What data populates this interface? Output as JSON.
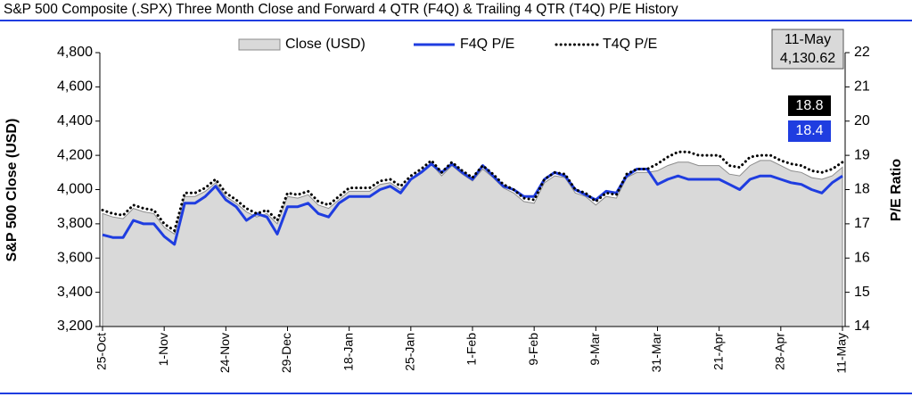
{
  "chart_data": {
    "type": "line",
    "title": "S&P 500 Composite (.SPX) Three Month Close and Forward 4 QTR (F4Q) & Trailing 4 QTR (T4Q) P/E History",
    "ylabel": "S&P 500 Close (USD)",
    "y2label": "P/E Ratio",
    "categories": [
      "25-Oct",
      null,
      null,
      null,
      null,
      null,
      "1-Nov",
      null,
      null,
      null,
      null,
      null,
      "24-Nov",
      null,
      null,
      null,
      null,
      null,
      "29-Dec",
      null,
      null,
      null,
      null,
      null,
      "18-Jan",
      null,
      null,
      null,
      null,
      null,
      "25-Jan",
      null,
      null,
      null,
      null,
      null,
      "1-Feb",
      null,
      null,
      null,
      null,
      null,
      "9-Feb",
      null,
      null,
      null,
      null,
      null,
      "9-Mar",
      null,
      null,
      null,
      null,
      null,
      "31-Mar",
      null,
      null,
      null,
      null,
      null,
      "21-Apr",
      null,
      null,
      null,
      null,
      null,
      "28-Apr",
      null,
      null,
      null,
      null,
      null,
      "11-May"
    ],
    "series": [
      {
        "name": "Close (USD)",
        "color": "#d9d9d9",
        "style": "area",
        "values": [
          3860,
          3840,
          3830,
          3890,
          3870,
          3860,
          3780,
          3740,
          3960,
          3960,
          3990,
          4040,
          3960,
          3920,
          3870,
          3840,
          3860,
          3800,
          3960,
          3950,
          3970,
          3910,
          3890,
          3940,
          3990,
          3990,
          3990,
          4030,
          4040,
          4000,
          4060,
          4100,
          4150,
          4080,
          4140,
          4090,
          4050,
          4120,
          4070,
          4010,
          3980,
          3930,
          3920,
          4040,
          4080,
          4070,
          3980,
          3960,
          3910,
          3960,
          3950,
          4070,
          4100,
          4100,
          4110,
          4140,
          4160,
          4160,
          4140,
          4140,
          4140,
          4090,
          4080,
          4140,
          4170,
          4170,
          4140,
          4110,
          4100,
          4070,
          4060,
          4080,
          4130.62
        ],
        "value_labels": [
          null,
          null,
          null,
          null,
          null,
          null,
          null,
          null,
          null,
          null,
          null,
          null,
          null,
          null,
          null,
          null,
          null,
          null,
          null,
          null,
          null,
          null,
          null,
          null,
          null,
          null,
          null,
          null,
          null,
          null,
          null,
          null,
          null,
          null,
          null,
          null,
          null,
          null,
          null,
          null,
          null,
          null,
          null,
          null,
          null,
          null,
          null,
          null,
          null,
          null,
          null,
          null,
          null,
          null,
          null,
          null,
          null,
          null,
          null,
          null,
          null,
          null,
          null,
          null,
          null,
          null,
          null,
          null,
          null,
          null,
          null,
          null,
          "4,130.62"
        ]
      },
      {
        "name": "F4Q P/E",
        "color": "#1f3de0",
        "style": "solid",
        "axis": "y2",
        "values": [
          16.68,
          16.6,
          16.6,
          17.1,
          17.0,
          17.0,
          16.63,
          16.4,
          17.6,
          17.6,
          17.8,
          18.1,
          17.7,
          17.5,
          17.1,
          17.3,
          17.2,
          16.7,
          17.5,
          17.5,
          17.6,
          17.3,
          17.2,
          17.6,
          17.8,
          17.8,
          17.8,
          18.0,
          18.1,
          17.9,
          18.3,
          18.5,
          18.75,
          18.5,
          18.75,
          18.5,
          18.3,
          18.7,
          18.4,
          18.1,
          18.0,
          17.8,
          17.8,
          18.3,
          18.5,
          18.4,
          18.0,
          17.85,
          17.7,
          17.95,
          17.9,
          18.4,
          18.6,
          18.6,
          18.15,
          18.3,
          18.4,
          18.3,
          18.3,
          18.3,
          18.3,
          18.15,
          18.0,
          18.3,
          18.4,
          18.4,
          18.3,
          18.2,
          18.15,
          18.0,
          17.9,
          18.2,
          18.4
        ]
      },
      {
        "name": "T4Q P/E",
        "color": "#000000",
        "style": "dotted",
        "axis": "y2",
        "values": [
          17.4,
          17.3,
          17.25,
          17.55,
          17.45,
          17.4,
          17.0,
          16.8,
          17.9,
          17.9,
          18.05,
          18.3,
          17.9,
          17.7,
          17.45,
          17.3,
          17.4,
          17.1,
          17.9,
          17.85,
          17.95,
          17.65,
          17.55,
          17.8,
          18.05,
          18.05,
          18.05,
          18.25,
          18.3,
          18.1,
          18.4,
          18.6,
          18.85,
          18.5,
          18.8,
          18.55,
          18.35,
          18.7,
          18.45,
          18.15,
          18.0,
          17.75,
          17.7,
          18.3,
          18.5,
          18.45,
          18.0,
          17.9,
          17.65,
          17.9,
          17.85,
          18.45,
          18.6,
          18.6,
          18.75,
          18.95,
          19.1,
          19.1,
          19.0,
          19.0,
          19.0,
          18.7,
          18.65,
          18.95,
          19.0,
          19.0,
          18.85,
          18.75,
          18.7,
          18.55,
          18.5,
          18.6,
          18.8
        ]
      }
    ],
    "ylim": [
      3200,
      4800
    ],
    "yticks": [
      {
        "value": 3200,
        "label": "3,200"
      },
      {
        "value": 3400,
        "label": "3,400"
      },
      {
        "value": 3600,
        "label": "3,600"
      },
      {
        "value": 3800,
        "label": "3,800"
      },
      {
        "value": 4000,
        "label": "4,000"
      },
      {
        "value": 4200,
        "label": "4,200"
      },
      {
        "value": 4400,
        "label": "4,400"
      },
      {
        "value": 4600,
        "label": "4,600"
      },
      {
        "value": 4800,
        "label": "4,800"
      }
    ],
    "y2lim": [
      14,
      22
    ],
    "y2ticks": [
      14,
      15,
      16,
      17,
      18,
      19,
      20,
      21,
      22
    ],
    "legend": "top",
    "grid": false
  }
}
